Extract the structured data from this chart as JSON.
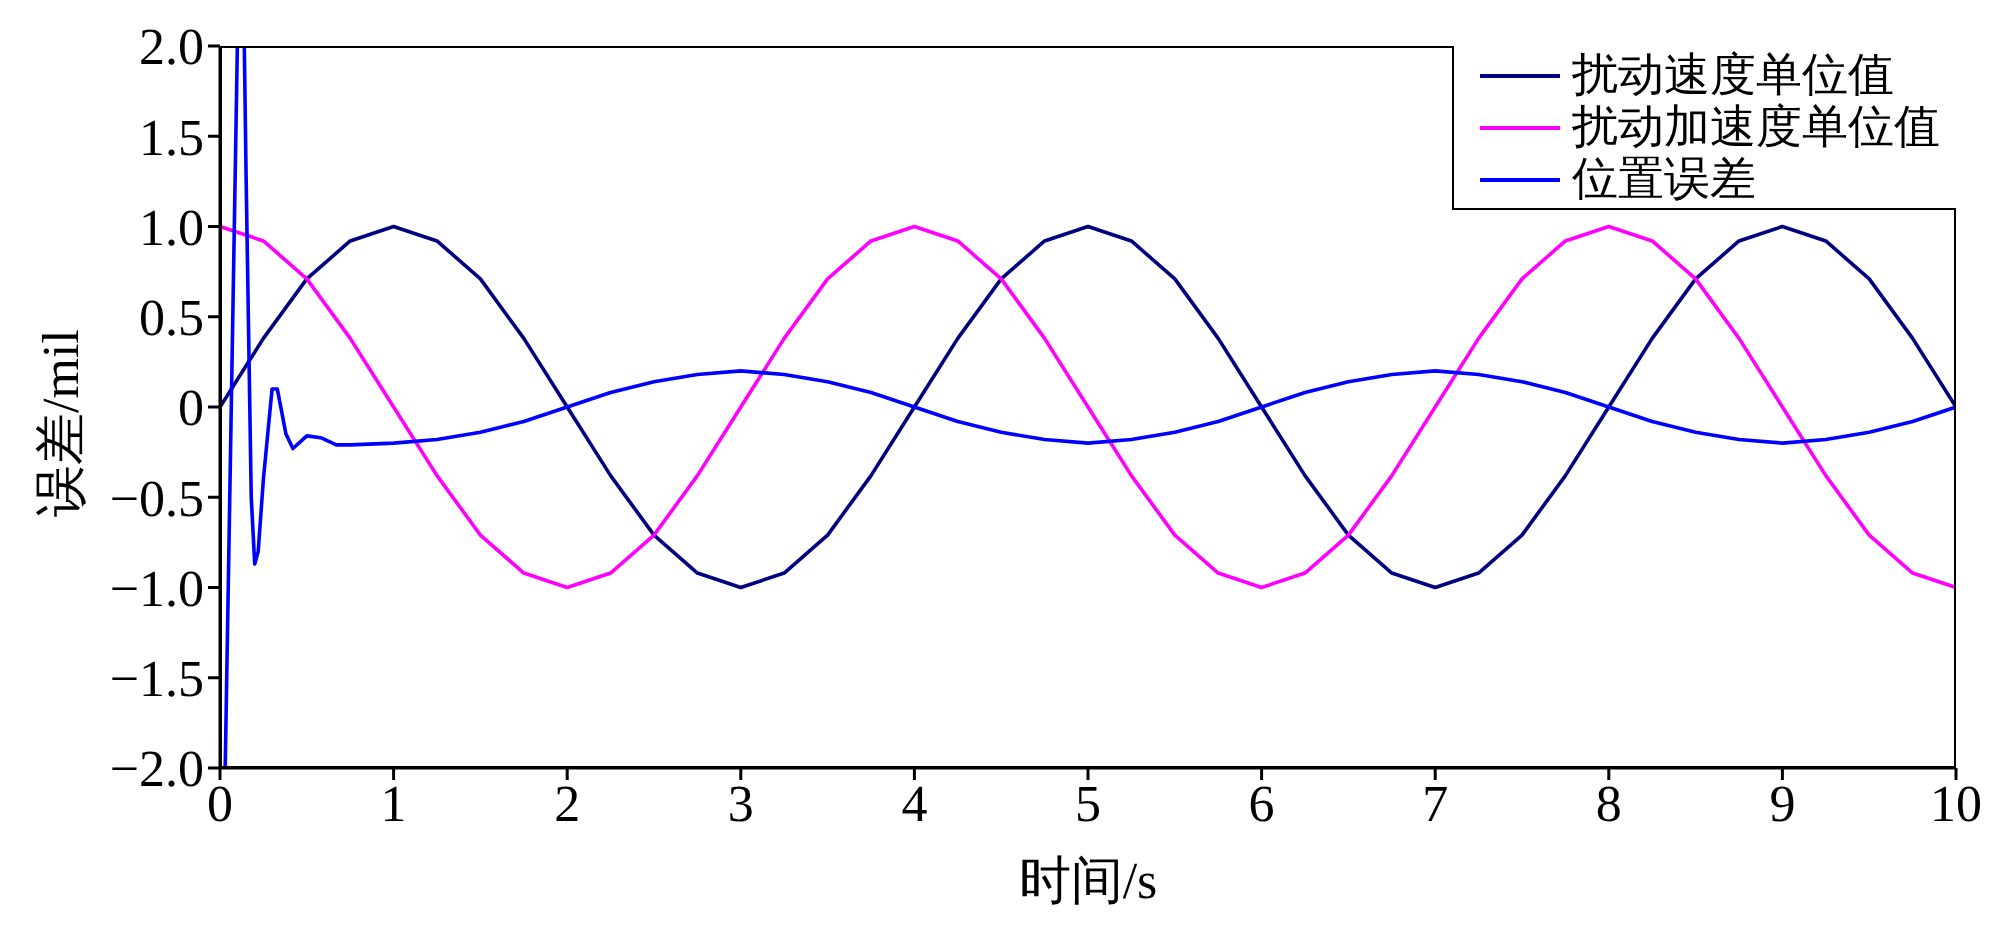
{
  "chart_data": {
    "type": "line",
    "xlabel": "时间/s",
    "ylabel": "误差/mil",
    "xlim": [
      0,
      10
    ],
    "xticks": [
      0,
      1,
      2,
      3,
      4,
      5,
      6,
      7,
      8,
      9,
      10
    ],
    "ylim": [
      -2.0,
      2.0
    ],
    "yticks": [
      {
        "value": -2,
        "label": "−2.0"
      },
      {
        "value": -1.5,
        "label": "−1.5"
      },
      {
        "value": -1,
        "label": "−1.0"
      },
      {
        "value": -0.5,
        "label": "−0.5"
      },
      0,
      {
        "value": 0.5,
        "label": "0.5"
      },
      {
        "value": 1,
        "label": "1.0"
      },
      {
        "value": 1.5,
        "label": "1.5"
      },
      {
        "value": 2,
        "label": "2.0"
      }
    ],
    "grid": false,
    "legend": "top right",
    "marker": "none",
    "line_style": "solid",
    "x": [
      0,
      0.25,
      0.5,
      0.75,
      1,
      1.25,
      1.5,
      1.75,
      2,
      2.25,
      2.5,
      2.75,
      3,
      3.25,
      3.5,
      3.75,
      4,
      4.25,
      4.5,
      4.75,
      5,
      5.25,
      5.5,
      5.75,
      6,
      6.25,
      6.5,
      6.75,
      7,
      7.25,
      7.5,
      7.75,
      8,
      8.25,
      8.5,
      8.75,
      9,
      9.25,
      9.5,
      9.75,
      10
    ],
    "series": [
      {
        "name": "扰动速度单位值",
        "color": "#000080",
        "values": [
          0,
          0.38,
          0.71,
          0.92,
          1,
          0.92,
          0.71,
          0.38,
          0,
          -0.38,
          -0.71,
          -0.92,
          -1,
          -0.92,
          -0.71,
          -0.38,
          0,
          0.38,
          0.71,
          0.92,
          1,
          0.92,
          0.71,
          0.38,
          0,
          -0.38,
          -0.71,
          -0.92,
          -1,
          -0.92,
          -0.71,
          -0.38,
          0,
          0.38,
          0.71,
          0.92,
          1,
          0.92,
          0.71,
          0.38,
          0
        ]
      },
      {
        "name": "扰动加速度单位值",
        "color": "#ff00ff",
        "values": [
          1,
          0.92,
          0.71,
          0.38,
          0,
          -0.38,
          -0.71,
          -0.92,
          -1,
          -0.92,
          -0.71,
          -0.38,
          0,
          0.38,
          0.71,
          0.92,
          1,
          0.92,
          0.71,
          0.38,
          0,
          -0.38,
          -0.71,
          -0.92,
          -1,
          -0.92,
          -0.71,
          -0.38,
          0,
          0.38,
          0.71,
          0.92,
          1,
          0.92,
          0.71,
          0.38,
          0,
          -0.38,
          -0.71,
          -0.92,
          -1
        ]
      },
      {
        "name": "位置误差",
        "color": "#0000ff",
        "x": [
          0.03,
          0.1,
          0.14,
          0.15,
          0.18,
          0.2,
          0.22,
          0.25,
          0.3,
          0.33,
          0.38,
          0.42,
          0.5,
          0.58,
          0.67,
          0.75,
          1,
          1.25,
          1.5,
          1.75,
          2,
          2.25,
          2.5,
          2.75,
          3,
          3.25,
          3.5,
          3.75,
          4,
          4.25,
          4.5,
          4.75,
          5,
          5.25,
          5.5,
          5.75,
          6,
          6.25,
          6.5,
          6.75,
          7,
          7.25,
          7.5,
          7.75,
          8,
          8.25,
          8.5,
          8.75,
          9,
          9.25,
          9.5,
          9.75,
          10
        ],
        "values": [
          -2,
          2,
          2,
          1.3,
          -0.5,
          -0.87,
          -0.8,
          -0.4,
          0.1,
          0.1,
          -0.15,
          -0.23,
          -0.16,
          -0.17,
          -0.21,
          -0.21,
          -0.2,
          -0.18,
          -0.14,
          -0.08,
          0,
          0.08,
          0.14,
          0.18,
          0.2,
          0.18,
          0.14,
          0.08,
          0,
          -0.08,
          -0.14,
          -0.18,
          -0.2,
          -0.18,
          -0.14,
          -0.08,
          0,
          0.08,
          0.14,
          0.18,
          0.2,
          0.18,
          0.14,
          0.08,
          0,
          -0.08,
          -0.14,
          -0.18,
          -0.2,
          -0.18,
          -0.14,
          -0.08,
          0
        ]
      }
    ]
  }
}
